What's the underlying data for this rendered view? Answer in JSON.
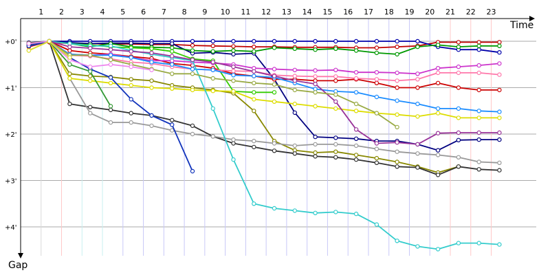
{
  "chart_data": {
    "type": "line",
    "xlabel": "Time",
    "ylabel": "Gap",
    "x_ticks": [
      "1",
      "2",
      "3",
      "4",
      "5",
      "6",
      "7",
      "8",
      "9",
      "10",
      "11",
      "12",
      "13",
      "14",
      "15",
      "16",
      "17",
      "18",
      "19",
      "20",
      "21",
      "22",
      "23"
    ],
    "y_ticks": [
      "+0'",
      "+1'",
      "+2'",
      "+3'",
      "+4'"
    ],
    "xlim": [
      0,
      25.2
    ],
    "ylim": [
      0,
      4.7
    ],
    "grid": true,
    "series": [
      {
        "color": "#c00000",
        "y": [
          0.07,
          0.02,
          0.05,
          0.05,
          0.06,
          0.06,
          0.07,
          0.07,
          0.09,
          0.1,
          0.11,
          0.12,
          0.12,
          0.13,
          0.13,
          0.13,
          0.14,
          0.14,
          0.12,
          0.1,
          0.02,
          0.02,
          0.02,
          0.02
        ]
      },
      {
        "color": "#0000aa",
        "y": [
          0.03,
          0.0,
          0.0,
          0.0,
          0.0,
          0.0,
          0.0,
          0.0,
          0.0,
          0.0,
          0.0,
          0.0,
          0.0,
          0.0,
          0.0,
          0.0,
          0.0,
          0.0,
          0.0,
          0.0,
          0.12,
          0.18,
          0.18,
          0.24
        ]
      },
      {
        "color": "#000080",
        "y": [
          0.05,
          0.0,
          0.03,
          0.05,
          0.04,
          0.04,
          0.05,
          0.05,
          0.26,
          0.24,
          0.28,
          0.26,
          0.82,
          1.54,
          2.06,
          2.08,
          2.1,
          2.15,
          2.15,
          2.22,
          2.35,
          2.13,
          2.12,
          2.12
        ]
      },
      {
        "color": "#009900",
        "y": [
          0.1,
          0.0,
          0.05,
          0.12,
          0.05,
          0.12,
          0.13,
          0.14,
          0.2,
          0.22,
          0.2,
          0.22,
          0.14,
          0.16,
          0.18,
          0.16,
          0.2,
          0.25,
          0.28,
          0.12,
          0.08,
          0.12,
          0.1,
          0.1
        ]
      },
      {
        "color": "#cc0000",
        "y": [
          0.12,
          0.0,
          0.2,
          0.25,
          0.28,
          0.33,
          0.37,
          0.48,
          0.52,
          0.58,
          0.7,
          0.75,
          0.82,
          0.82,
          0.85,
          0.85,
          0.82,
          0.9,
          1.0,
          1.0,
          0.9,
          1.0,
          1.05,
          1.05
        ]
      },
      {
        "color": "#33cc00",
        "y": [
          0.08,
          0.0,
          0.05,
          0.08,
          0.12,
          0.14,
          0.16,
          0.22,
          0.38,
          0.42,
          1.08,
          1.1,
          1.1,
          null,
          null,
          null,
          null,
          null,
          null,
          null,
          null,
          null,
          null,
          null
        ]
      },
      {
        "color": "#cc33cc",
        "y": [
          0.07,
          0.0,
          0.28,
          0.3,
          0.28,
          0.35,
          0.42,
          0.42,
          0.45,
          0.47,
          0.5,
          0.58,
          0.6,
          0.62,
          0.63,
          0.62,
          0.67,
          0.67,
          0.68,
          0.7,
          0.58,
          0.55,
          0.52,
          0.48
        ]
      },
      {
        "color": "#ff77aa",
        "y": [
          0.05,
          0.0,
          0.3,
          0.32,
          0.38,
          0.45,
          0.48,
          0.55,
          0.6,
          0.62,
          0.64,
          0.65,
          0.73,
          0.75,
          0.76,
          0.76,
          0.8,
          0.82,
          0.85,
          0.82,
          0.68,
          0.68,
          0.68,
          0.72
        ]
      },
      {
        "color": "#1a8cff",
        "y": [
          0.1,
          0.0,
          0.28,
          0.3,
          0.3,
          0.35,
          0.45,
          0.5,
          0.6,
          0.62,
          0.73,
          0.75,
          0.78,
          0.9,
          1.03,
          1.08,
          1.1,
          1.2,
          1.28,
          1.35,
          1.45,
          1.45,
          1.5,
          1.52
        ]
      },
      {
        "color": "#888800",
        "y": [
          0.04,
          0.0,
          0.7,
          0.75,
          0.77,
          0.82,
          0.85,
          0.95,
          1.0,
          1.05,
          1.12,
          1.5,
          2.15,
          2.35,
          2.4,
          2.38,
          2.45,
          2.52,
          2.6,
          2.7,
          2.83,
          2.7,
          null,
          null
        ]
      },
      {
        "color": "#333333",
        "y": [
          0.08,
          0.0,
          1.35,
          1.42,
          1.48,
          1.55,
          1.6,
          1.7,
          1.82,
          2.05,
          2.2,
          2.28,
          2.36,
          2.42,
          2.48,
          2.5,
          2.55,
          2.62,
          2.7,
          2.72,
          2.88,
          2.7,
          2.76,
          2.78
        ]
      },
      {
        "color": "#999999",
        "y": [
          0.06,
          0.0,
          0.8,
          1.55,
          1.75,
          1.75,
          1.82,
          1.92,
          2.0,
          2.05,
          2.12,
          2.15,
          2.2,
          2.25,
          2.22,
          2.22,
          2.25,
          2.32,
          2.38,
          2.42,
          2.45,
          2.5,
          2.6,
          2.62
        ]
      },
      {
        "color": "#dddd00",
        "y": [
          0.2,
          0.0,
          0.8,
          0.85,
          0.9,
          0.95,
          1.0,
          1.02,
          1.05,
          1.07,
          1.08,
          1.25,
          1.3,
          1.35,
          1.4,
          1.45,
          1.5,
          1.55,
          1.58,
          1.62,
          1.55,
          1.65,
          1.65,
          1.65
        ]
      },
      {
        "color": "#33cccc",
        "y": [
          0.1,
          0.0,
          0.05,
          0.1,
          0.1,
          0.2,
          0.28,
          0.35,
          0.42,
          1.45,
          2.55,
          3.5,
          3.6,
          3.65,
          3.7,
          3.68,
          3.72,
          3.95,
          4.3,
          4.42,
          4.48,
          4.35,
          4.35,
          4.38
        ]
      },
      {
        "color": "#993399",
        "y": [
          0.06,
          0.0,
          0.12,
          0.15,
          0.18,
          0.22,
          0.25,
          0.32,
          0.4,
          0.45,
          0.55,
          0.65,
          0.75,
          0.85,
          0.92,
          1.3,
          1.9,
          2.2,
          2.18,
          2.22,
          1.98,
          1.97,
          1.97,
          1.97
        ]
      },
      {
        "color": "#99aa44",
        "y": [
          0.05,
          0.0,
          0.3,
          0.3,
          0.4,
          0.5,
          0.6,
          0.7,
          0.7,
          0.8,
          0.85,
          0.9,
          0.93,
          1.05,
          1.1,
          1.15,
          1.35,
          1.55,
          1.85,
          null,
          null,
          null,
          null,
          null
        ]
      },
      {
        "color": "#1133bb",
        "y": [
          0.1,
          0.0,
          0.35,
          0.6,
          0.78,
          1.25,
          1.6,
          1.8,
          2.8,
          null,
          null,
          null,
          null,
          null,
          null,
          null,
          null,
          null,
          null,
          null,
          null,
          null,
          null,
          null
        ]
      },
      {
        "color": "#339933",
        "y": [
          0.05,
          0.0,
          0.5,
          0.65,
          1.4,
          null,
          null,
          null,
          null,
          null,
          null,
          null,
          null,
          null,
          null,
          null,
          null,
          null,
          null,
          null,
          null,
          null,
          null,
          null
        ]
      },
      {
        "color": "#ee88ee",
        "y": [
          0.05,
          0.0,
          0.4,
          0.55,
          0.5,
          0.55,
          0.62,
          null,
          null,
          null,
          null,
          null,
          null,
          null,
          null,
          null,
          null,
          null,
          null,
          null,
          null,
          null,
          null,
          null
        ]
      },
      {
        "color": "#dddd33",
        "y": [
          0.2,
          0.0,
          0.35,
          null,
          null,
          null,
          null,
          null,
          null,
          null,
          null,
          null,
          null,
          null,
          null,
          null,
          null,
          null,
          null,
          null,
          null,
          null,
          null,
          null
        ]
      }
    ]
  }
}
